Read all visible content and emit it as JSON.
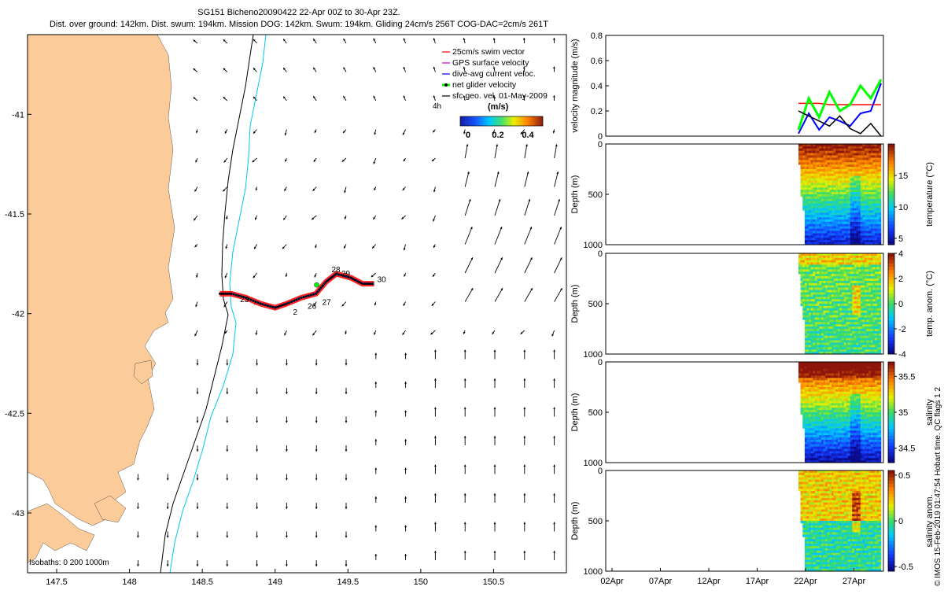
{
  "title": {
    "line1": "SG151 Bicheno20090422 22-Apr 00Z to 30-Apr 23Z.",
    "line2": "Dist. over ground: 142km. Dist. swum: 194km. Mission DOG: 142km. Swum: 194km. Gliding 24cm/s 256T COG-DAC=2cm/s 261T"
  },
  "colors": {
    "land": "#fbcb9a",
    "bathy_0": "#000000",
    "bathy_200": "#000000",
    "bathy_1000": "#00c8e8",
    "swim_vector": "#ff0000",
    "gps_velocity": "#cc00cc",
    "dac_velocity": "#0000ff",
    "net_velocity": "#00ff00",
    "geo_velocity": "#000000"
  },
  "map": {
    "legend": {
      "items": [
        "25cm/s swim vector",
        "GPS surface velocity",
        "dive-avg current veloc.",
        "net glider velocity",
        "sfc geo. vel. 01-May-2009"
      ],
      "time_marker": "4h"
    },
    "colorbar": {
      "title": "(m/s)",
      "ticks": [
        "0",
        "0.2",
        "0.4"
      ]
    },
    "isobaths_label": "Isobaths: 0 200 1000m",
    "track_day_labels": [
      "23",
      "2",
      "26",
      "27",
      "28",
      "29",
      "30"
    ],
    "chart_data": {
      "type": "scatter",
      "xlabel": "",
      "ylabel": "",
      "xlim": [
        147.3,
        151.0
      ],
      "ylim": [
        -43.3,
        -40.6
      ],
      "xticks": [
        "147.5",
        "148",
        "148.5",
        "149",
        "149.5",
        "150",
        "150.5"
      ],
      "yticks": [
        "-41",
        "-41.5",
        "-42",
        "-42.5",
        "-43"
      ],
      "track_lon": [
        148.62,
        148.7,
        148.8,
        148.9,
        149.0,
        149.08,
        149.18,
        149.28,
        149.35,
        149.42,
        149.52,
        149.6,
        149.68
      ],
      "track_lat": [
        -41.9,
        -41.9,
        -41.92,
        -41.95,
        -41.97,
        -41.95,
        -41.92,
        -41.9,
        -41.84,
        -41.8,
        -41.82,
        -41.85,
        -41.85
      ]
    }
  },
  "panels": [
    {
      "id": "velocity",
      "ylabel": "velocity magnitude (m/s)",
      "chart_data": {
        "type": "line",
        "xlabel": "",
        "ylabel": "velocity magnitude (m/s)",
        "ylim": [
          0,
          0.8
        ],
        "yticks": [
          "0",
          "0.2",
          "0.4",
          "0.6",
          "0.8"
        ],
        "series": [
          {
            "name": "swim",
            "values": [
              0.26,
              0.26,
              0.26,
              0.25,
              0.25,
              0.25,
              0.25,
              0.25,
              0.25
            ]
          },
          {
            "name": "dac",
            "values": [
              0.02,
              0.18,
              0.05,
              0.15,
              0.12,
              0.08,
              0.18,
              0.2,
              0.42
            ]
          },
          {
            "name": "net",
            "values": [
              0.05,
              0.3,
              0.15,
              0.35,
              0.2,
              0.25,
              0.4,
              0.3,
              0.45
            ]
          },
          {
            "name": "geo",
            "values": [
              0.2,
              0.16,
              0.12,
              0.08,
              0.16,
              0.06,
              0.02,
              0.1,
              0.0
            ]
          }
        ]
      }
    },
    {
      "id": "temperature",
      "ylabel": "Depth (m)",
      "cbar_label": "temperature (°C)",
      "chart_data": {
        "type": "heatmap",
        "ylabel": "Depth (m)",
        "ylim": [
          1000,
          0
        ],
        "yticks": [
          "0",
          "500",
          "1000"
        ],
        "clim": [
          4,
          20
        ],
        "cticks": [
          "15",
          "10",
          "5"
        ],
        "cvals": [
          15,
          10,
          5
        ]
      }
    },
    {
      "id": "temp-anomaly",
      "ylabel": "Depth (m)",
      "cbar_label": "temp. anom. (°C)",
      "chart_data": {
        "type": "heatmap",
        "ylabel": "Depth (m)",
        "ylim": [
          1000,
          0
        ],
        "yticks": [
          "0",
          "500",
          "1000"
        ],
        "clim": [
          -4,
          4
        ],
        "cticks": [
          "4",
          "2",
          "0",
          "-2",
          "-4"
        ],
        "cvals": [
          4,
          2,
          0,
          -2,
          -4
        ]
      }
    },
    {
      "id": "salinity",
      "ylabel": "Depth (m)",
      "cbar_label": "salinity",
      "chart_data": {
        "type": "heatmap",
        "ylabel": "Depth (m)",
        "ylim": [
          1000,
          0
        ],
        "yticks": [
          "0",
          "500",
          "1000"
        ],
        "clim": [
          34.3,
          35.7
        ],
        "cticks": [
          "35.5",
          "35",
          "34.5"
        ],
        "cvals": [
          35.5,
          35,
          34.5
        ]
      }
    },
    {
      "id": "salinity-anomaly",
      "ylabel": "Depth (m)",
      "cbar_label": "salinity anom.",
      "chart_data": {
        "type": "heatmap",
        "ylabel": "Depth (m)",
        "ylim": [
          1000,
          0
        ],
        "yticks": [
          "0",
          "500",
          "1000"
        ],
        "clim": [
          -0.55,
          0.55
        ],
        "cticks": [
          "0.5",
          "0",
          "-0.5"
        ],
        "cvals": [
          0.5,
          0,
          -0.5
        ]
      }
    }
  ],
  "time_axis": {
    "ticks": [
      "02Apr",
      "07Apr",
      "12Apr",
      "17Apr",
      "22Apr",
      "27Apr"
    ]
  },
  "side_label": "© IMOS 15-Feb-2019 01:47:54 Hobart time. QC flags 1  2"
}
